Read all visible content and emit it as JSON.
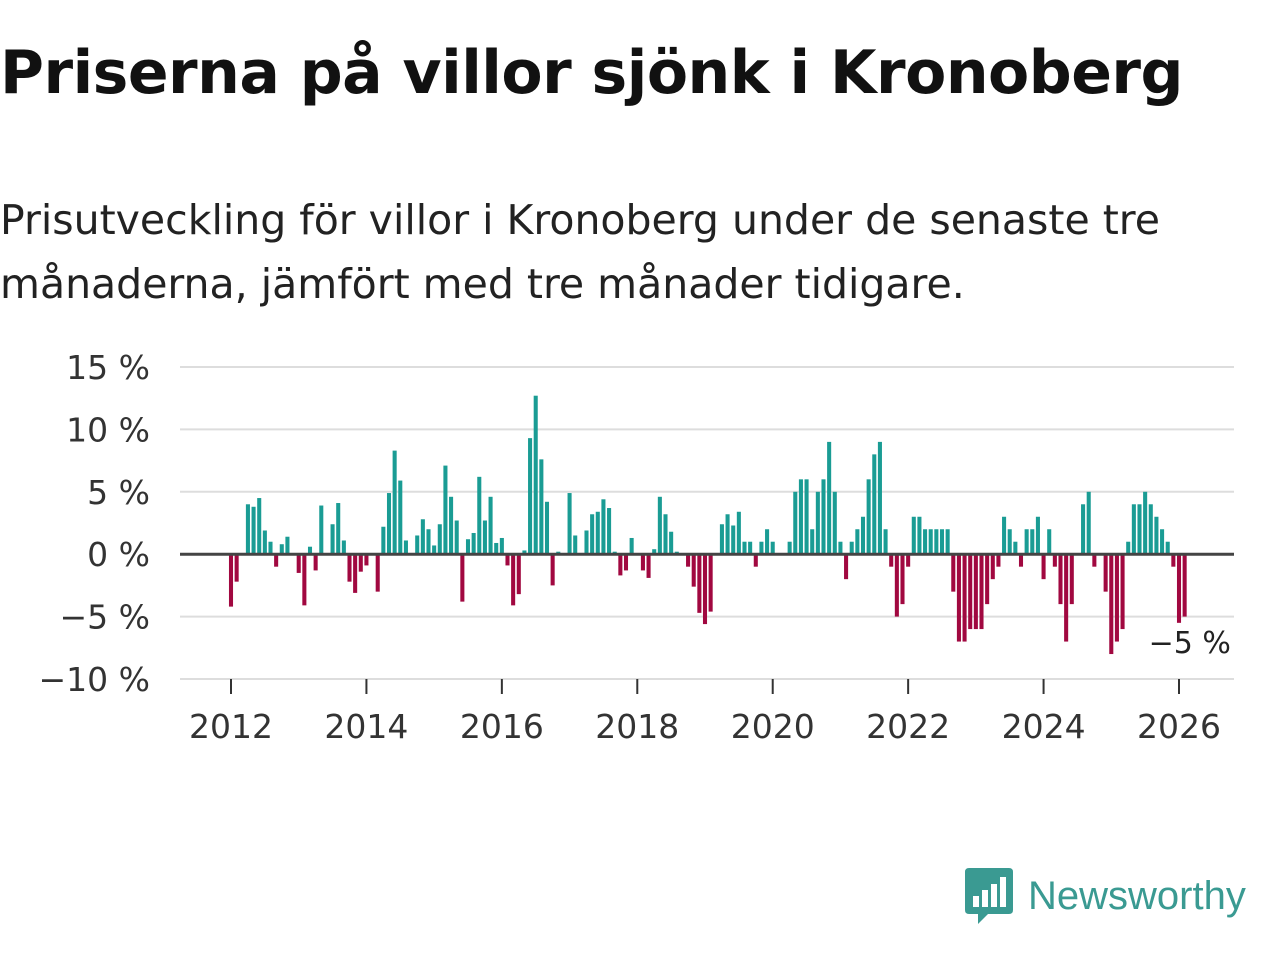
{
  "title": "Priserna på villor sjönk i Kronoberg",
  "subtitle": "Prisutveckling för villor i Kronoberg under de senaste tre månaderna, jämfört med tre månader tidigare.",
  "brand": {
    "name": "Newsworthy",
    "icon": "newsworthy-logo-icon",
    "color": "#3a9a92"
  },
  "colors": {
    "positive": "#1a9c94",
    "negative": "#a10840",
    "grid": "#dddddd",
    "zero": "#444444"
  },
  "chart_data": {
    "type": "bar",
    "title": "Priserna på villor sjönk i Kronoberg",
    "xlabel": "",
    "ylabel": "",
    "ylim": [
      -10,
      15
    ],
    "y_ticks": [
      15,
      10,
      5,
      0,
      -5,
      -10
    ],
    "y_tick_labels": [
      "15 %",
      "10 %",
      "5 %",
      "0 %",
      "−5 %",
      "−10 %"
    ],
    "x_ticks": [
      2012,
      2014,
      2016,
      2018,
      2020,
      2022,
      2024,
      2026
    ],
    "x_tick_labels": [
      "2012",
      "2014",
      "2016",
      "2018",
      "2020",
      "2022",
      "2024",
      "2026"
    ],
    "start": {
      "year": 2012,
      "month": 1
    },
    "unit": "month",
    "values": [
      -4.2,
      -2.2,
      -0.1,
      4.0,
      3.8,
      4.5,
      1.9,
      1.0,
      -1.0,
      0.8,
      1.4,
      0.0,
      -1.5,
      -4.1,
      0.6,
      -1.3,
      3.9,
      0.0,
      2.4,
      4.1,
      1.1,
      -2.2,
      -3.1,
      -1.4,
      -0.9,
      0.0,
      -3.0,
      2.2,
      4.9,
      8.3,
      5.9,
      1.1,
      0.0,
      1.5,
      2.8,
      2.0,
      0.7,
      2.4,
      7.1,
      4.6,
      2.7,
      -3.8,
      1.2,
      1.7,
      6.2,
      2.7,
      4.6,
      0.9,
      1.3,
      -0.9,
      -4.1,
      -3.2,
      0.3,
      9.3,
      12.7,
      7.6,
      4.2,
      -2.5,
      0.2,
      0.0,
      4.9,
      1.5,
      0.0,
      1.9,
      3.2,
      3.4,
      4.4,
      3.7,
      0.2,
      -1.7,
      -1.3,
      1.3,
      0.0,
      -1.3,
      -1.9,
      0.4,
      4.6,
      3.2,
      1.8,
      0.2,
      0.0,
      -1.0,
      -2.6,
      -4.7,
      -5.6,
      -4.6,
      0.0,
      2.4,
      3.2,
      2.3,
      3.4,
      1.0,
      1.0,
      -1.0,
      1.0,
      2.0,
      1.0,
      0.0,
      0.0,
      1.0,
      5.0,
      6.0,
      6.0,
      2.0,
      5.0,
      6.0,
      9.0,
      5.0,
      1.0,
      -2.0,
      1.0,
      2.0,
      3.0,
      6.0,
      8.0,
      9.0,
      2.0,
      -1.0,
      -5.0,
      -4.0,
      -1.0,
      3.0,
      3.0,
      2.0,
      2.0,
      2.0,
      2.0,
      2.0,
      -3.0,
      -7.0,
      -7.0,
      -6.0,
      -6.0,
      -6.0,
      -4.0,
      -2.0,
      -1.0,
      3.0,
      2.0,
      1.0,
      -1.0,
      2.0,
      2.0,
      3.0,
      -2.0,
      2.0,
      -1.0,
      -4.0,
      -7.0,
      -4.0,
      0.0,
      4.0,
      5.0,
      -1.0,
      0.0,
      -3.0,
      -8.0,
      -7.0,
      -6.0,
      1.0,
      4.0,
      4.0,
      5.0,
      4.0,
      3.0,
      2.0,
      1.0,
      -1.0,
      -5.5,
      -5.0
    ],
    "annotation": {
      "text": "−5 %",
      "at": "last-bar"
    }
  }
}
